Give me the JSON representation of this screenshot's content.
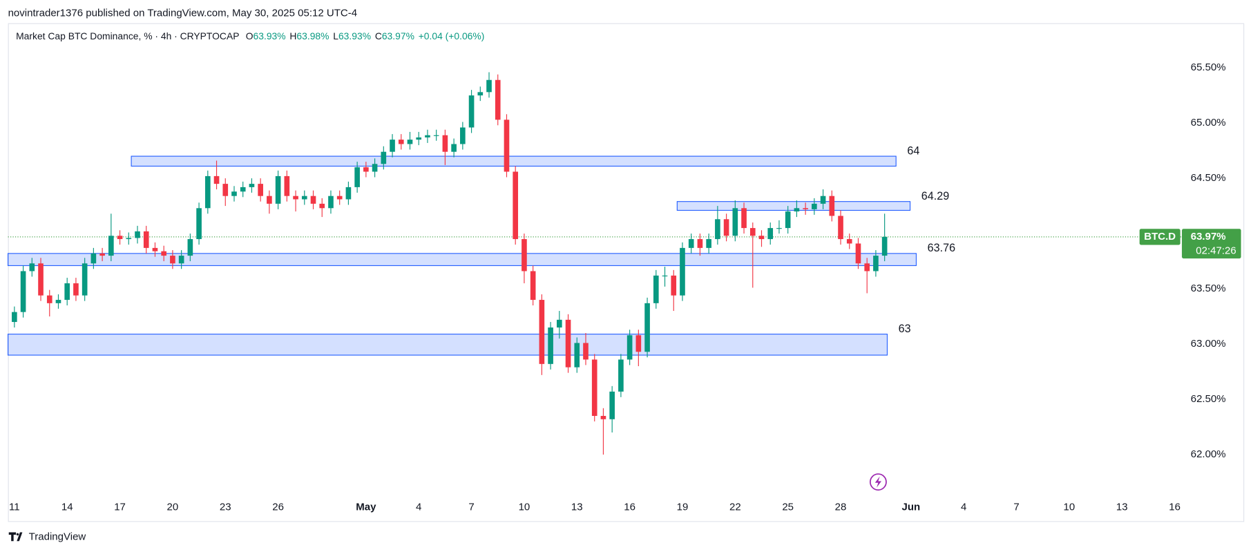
{
  "header": "novintrader1376 published on TradingView.com, May 30, 2025 05:12 UTC-4",
  "footer": "TradingView",
  "chart_data": {
    "type": "candlestick",
    "legend": {
      "symbol": "Market Cap BTC Dominance, % · 4h · CRYPTOCAP",
      "ohlc": [
        {
          "key": "O",
          "value": "63.93%"
        },
        {
          "key": "H",
          "value": "63.98%"
        },
        {
          "key": "L",
          "value": "63.93%"
        },
        {
          "key": "C",
          "value": "63.97%"
        }
      ],
      "change": "+0.04 (+0.06%)"
    },
    "open": [
      63.2,
      63.29,
      63.66,
      63.73,
      63.44,
      63.37,
      63.4,
      63.55,
      63.44,
      63.73,
      63.82,
      63.8,
      63.98,
      63.95,
      63.96,
      64.02,
      63.87,
      63.84,
      63.8,
      63.73,
      63.8,
      63.95,
      64.23,
      64.52,
      64.45,
      64.34,
      64.38,
      64.42,
      64.45,
      64.34,
      64.27,
      64.52,
      64.34,
      64.31,
      64.34,
      64.27,
      64.23,
      64.34,
      64.31,
      64.42,
      64.6,
      64.56,
      64.63,
      64.74,
      64.85,
      64.81,
      64.85,
      64.87,
      64.89,
      64.89,
      64.74,
      64.81,
      64.96,
      65.25,
      65.28,
      65.39,
      65.03,
      64.56,
      63.95,
      63.66,
      63.4,
      62.82,
      63.15,
      63.22,
      62.79,
      63.01,
      62.86,
      62.35,
      62.32,
      62.57,
      62.86,
      63.08,
      62.93,
      63.37,
      63.62,
      63.62,
      63.44,
      63.87,
      63.95,
      63.87,
      63.95,
      64.13,
      63.98,
      64.23,
      64.05,
      63.98,
      63.95,
      64.05,
      64.05,
      64.2,
      64.23,
      64.22,
      64.27,
      64.34,
      64.16,
      63.95,
      63.91,
      63.73,
      63.66,
      63.8
    ],
    "high": [
      63.34,
      63.71,
      63.78,
      63.78,
      63.49,
      63.45,
      63.6,
      63.6,
      63.78,
      63.87,
      63.87,
      64.18,
      64.03,
      64.01,
      64.07,
      64.07,
      63.92,
      63.89,
      63.85,
      63.85,
      64.0,
      64.28,
      64.57,
      64.66,
      64.5,
      64.43,
      64.47,
      64.5,
      64.5,
      64.39,
      64.57,
      64.57,
      64.39,
      64.39,
      64.39,
      64.32,
      64.39,
      64.39,
      64.47,
      64.65,
      64.65,
      64.68,
      64.79,
      64.9,
      64.9,
      64.92,
      64.92,
      64.94,
      64.94,
      64.94,
      64.86,
      65.01,
      65.3,
      65.33,
      65.46,
      65.44,
      65.08,
      64.61,
      64.0,
      63.71,
      63.45,
      63.2,
      63.3,
      63.27,
      63.06,
      63.1,
      62.91,
      62.42,
      62.62,
      62.91,
      63.13,
      63.13,
      63.42,
      63.67,
      63.7,
      63.67,
      63.92,
      64.0,
      64.0,
      64.0,
      64.25,
      64.18,
      64.3,
      64.28,
      64.1,
      64.03,
      64.1,
      64.12,
      64.25,
      64.3,
      64.28,
      64.32,
      64.4,
      64.39,
      64.21,
      64.0,
      63.96,
      63.78,
      63.85,
      64.18
    ],
    "low": [
      63.15,
      63.24,
      63.61,
      63.39,
      63.25,
      63.32,
      63.35,
      63.39,
      63.39,
      63.68,
      63.75,
      63.75,
      63.9,
      63.9,
      63.91,
      63.82,
      63.79,
      63.75,
      63.68,
      63.68,
      63.75,
      63.9,
      64.18,
      64.4,
      64.25,
      64.29,
      64.33,
      64.37,
      64.29,
      64.18,
      64.22,
      64.29,
      64.2,
      64.26,
      64.22,
      64.15,
      64.18,
      64.26,
      64.26,
      64.37,
      64.51,
      64.51,
      64.58,
      64.69,
      64.76,
      64.76,
      64.8,
      64.82,
      64.84,
      64.62,
      64.69,
      64.76,
      64.91,
      65.2,
      65.23,
      64.98,
      64.51,
      63.9,
      63.55,
      63.35,
      62.72,
      62.77,
      63.05,
      62.74,
      62.74,
      62.81,
      62.3,
      62.0,
      62.2,
      62.52,
      62.81,
      62.8,
      62.88,
      63.32,
      63.52,
      63.3,
      63.39,
      63.82,
      63.8,
      63.82,
      63.9,
      63.93,
      63.93,
      64.0,
      63.51,
      63.88,
      63.9,
      64.0,
      64.0,
      64.15,
      64.17,
      64.17,
      64.22,
      64.11,
      63.9,
      63.86,
      63.68,
      63.46,
      63.61,
      63.75
    ],
    "close": [
      63.29,
      63.66,
      63.73,
      63.44,
      63.37,
      63.4,
      63.55,
      63.44,
      63.73,
      63.82,
      63.8,
      63.98,
      63.95,
      63.96,
      64.02,
      63.87,
      63.84,
      63.8,
      63.73,
      63.8,
      63.95,
      64.23,
      64.52,
      64.45,
      64.34,
      64.38,
      64.42,
      64.45,
      64.34,
      64.27,
      64.52,
      64.34,
      64.31,
      64.34,
      64.27,
      64.23,
      64.34,
      64.31,
      64.42,
      64.6,
      64.56,
      64.63,
      64.74,
      64.85,
      64.81,
      64.85,
      64.87,
      64.89,
      64.89,
      64.74,
      64.81,
      64.96,
      65.25,
      65.28,
      65.39,
      65.03,
      64.56,
      63.95,
      63.66,
      63.4,
      62.82,
      63.15,
      63.22,
      62.79,
      63.01,
      62.86,
      62.35,
      62.32,
      62.57,
      62.86,
      63.08,
      62.93,
      63.37,
      63.62,
      63.62,
      63.44,
      63.87,
      63.95,
      63.87,
      63.95,
      64.13,
      63.98,
      64.23,
      64.05,
      63.98,
      63.95,
      64.05,
      64.05,
      64.2,
      64.23,
      64.22,
      64.27,
      64.34,
      64.16,
      63.95,
      63.91,
      63.73,
      63.66,
      63.8,
      63.97
    ],
    "up_color": "#089981",
    "down_color": "#f23645",
    "xlim": [
      -0.73,
      132.73
    ],
    "xticks": [
      {
        "value": 0,
        "label": "11"
      },
      {
        "value": 6,
        "label": "14"
      },
      {
        "value": 12,
        "label": "17"
      },
      {
        "value": 18,
        "label": "20"
      },
      {
        "value": 24,
        "label": "23"
      },
      {
        "value": 30,
        "label": "26"
      },
      {
        "value": 40,
        "label": "May"
      },
      {
        "value": 46,
        "label": "4"
      },
      {
        "value": 52,
        "label": "7"
      },
      {
        "value": 58,
        "label": "10"
      },
      {
        "value": 64,
        "label": "13"
      },
      {
        "value": 70,
        "label": "16"
      },
      {
        "value": 76,
        "label": "19"
      },
      {
        "value": 82,
        "label": "22"
      },
      {
        "value": 88,
        "label": "25"
      },
      {
        "value": 94,
        "label": "28"
      },
      {
        "value": 102,
        "label": "Jun"
      },
      {
        "value": 108,
        "label": "4"
      },
      {
        "value": 114,
        "label": "7"
      },
      {
        "value": 120,
        "label": "10"
      },
      {
        "value": 126,
        "label": "13"
      },
      {
        "value": 132,
        "label": "16"
      }
    ],
    "ylim": [
      61.63,
      65.9
    ],
    "yticks": [
      {
        "value": 62,
        "label": "62.00%"
      },
      {
        "value": 62.5,
        "label": "62.50%"
      },
      {
        "value": 63,
        "label": "63.00%"
      },
      {
        "value": 63.5,
        "label": "63.50%"
      },
      {
        "value": 64,
        "label": "64.00%"
      },
      {
        "value": 64.5,
        "label": "64.50%"
      },
      {
        "value": 65,
        "label": "65.00%"
      },
      {
        "value": 65.5,
        "label": "65.50%"
      }
    ],
    "grid": false,
    "zones": [
      {
        "label": "64",
        "top": 64.7,
        "bottom": 64.61,
        "start": 13.3,
        "end": 100.3
      },
      {
        "label": "64.29",
        "top": 64.29,
        "bottom": 64.21,
        "start": 75.4,
        "end": 101.9
      },
      {
        "label": "63.76",
        "top": 63.82,
        "bottom": 63.71,
        "start": -0.73,
        "end": 102.6
      },
      {
        "label": "63",
        "top": 63.09,
        "bottom": 62.9,
        "start": -0.73,
        "end": 99.3
      }
    ],
    "zone_color": "#2962ff",
    "last_price": {
      "value": 63.97,
      "label": "63.97%"
    },
    "symbol": "BTC.D",
    "countdown": "02:47:26",
    "price_color": "#43a047"
  }
}
